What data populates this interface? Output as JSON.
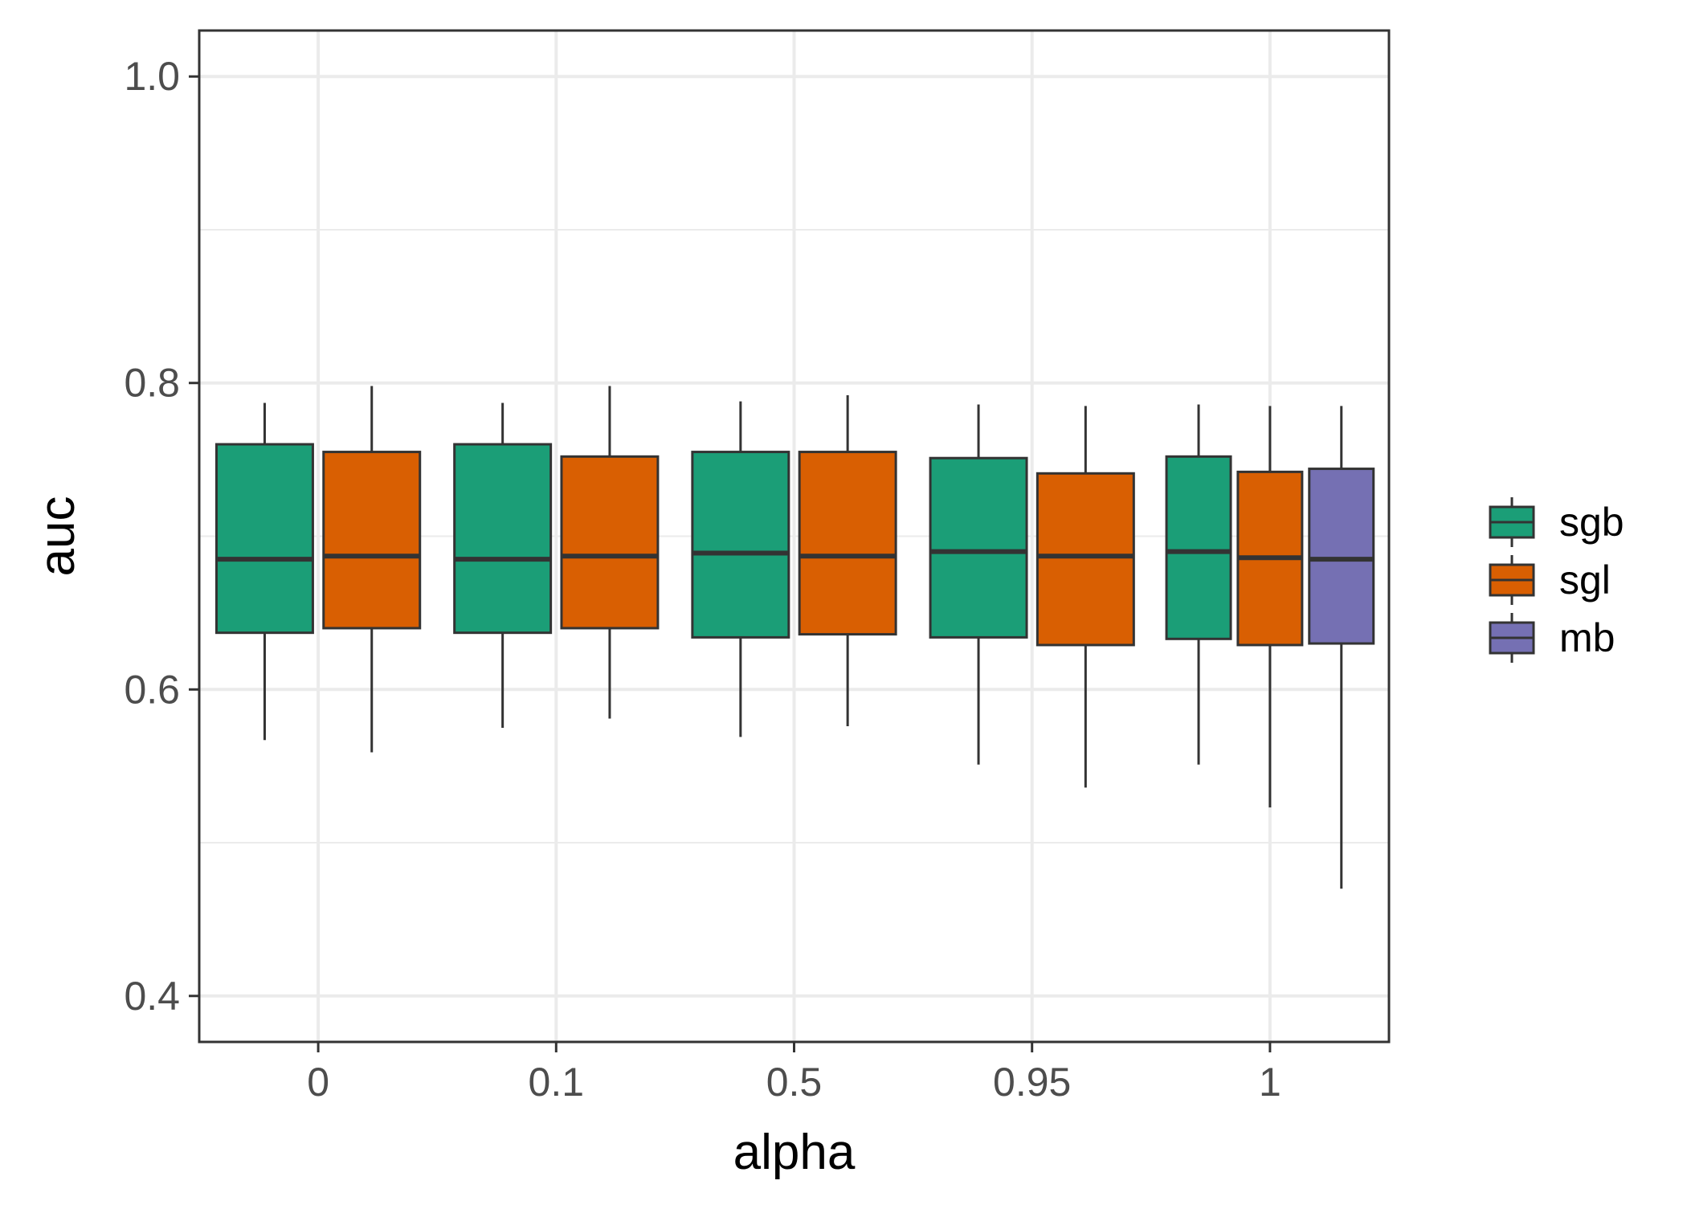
{
  "chart_data": {
    "type": "boxplot",
    "title": "",
    "xlabel": "alpha",
    "ylabel": "auc",
    "categories": [
      "0",
      "0.1",
      "0.5",
      "0.95",
      "1"
    ],
    "ylim": [
      0.37,
      1.03
    ],
    "yticks": [
      "0.4",
      "0.6",
      "0.8",
      "1.0"
    ],
    "grid": true,
    "legend_position": "right",
    "series": [
      {
        "name": "sgb",
        "color": "#1b9e77",
        "boxes": [
          {
            "category": "0",
            "low": 0.567,
            "q1": 0.637,
            "median": 0.685,
            "q3": 0.76,
            "high": 0.787
          },
          {
            "category": "0.1",
            "low": 0.575,
            "q1": 0.637,
            "median": 0.685,
            "q3": 0.76,
            "high": 0.787
          },
          {
            "category": "0.5",
            "low": 0.569,
            "q1": 0.634,
            "median": 0.689,
            "q3": 0.755,
            "high": 0.788
          },
          {
            "category": "0.95",
            "low": 0.551,
            "q1": 0.634,
            "median": 0.69,
            "q3": 0.751,
            "high": 0.786
          },
          {
            "category": "1",
            "low": 0.551,
            "q1": 0.633,
            "median": 0.69,
            "q3": 0.752,
            "high": 0.786
          }
        ]
      },
      {
        "name": "sgl",
        "color": "#d95f02",
        "boxes": [
          {
            "category": "0",
            "low": 0.559,
            "q1": 0.64,
            "median": 0.687,
            "q3": 0.755,
            "high": 0.798
          },
          {
            "category": "0.1",
            "low": 0.581,
            "q1": 0.64,
            "median": 0.687,
            "q3": 0.752,
            "high": 0.798
          },
          {
            "category": "0.5",
            "low": 0.576,
            "q1": 0.636,
            "median": 0.687,
            "q3": 0.755,
            "high": 0.792
          },
          {
            "category": "0.95",
            "low": 0.536,
            "q1": 0.629,
            "median": 0.687,
            "q3": 0.741,
            "high": 0.785
          },
          {
            "category": "1",
            "low": 0.523,
            "q1": 0.629,
            "median": 0.686,
            "q3": 0.742,
            "high": 0.785
          }
        ]
      },
      {
        "name": "mb",
        "color": "#7570b3",
        "boxes": [
          {
            "category": "1",
            "low": 0.47,
            "q1": 0.63,
            "median": 0.685,
            "q3": 0.744,
            "high": 0.785
          }
        ]
      }
    ]
  }
}
